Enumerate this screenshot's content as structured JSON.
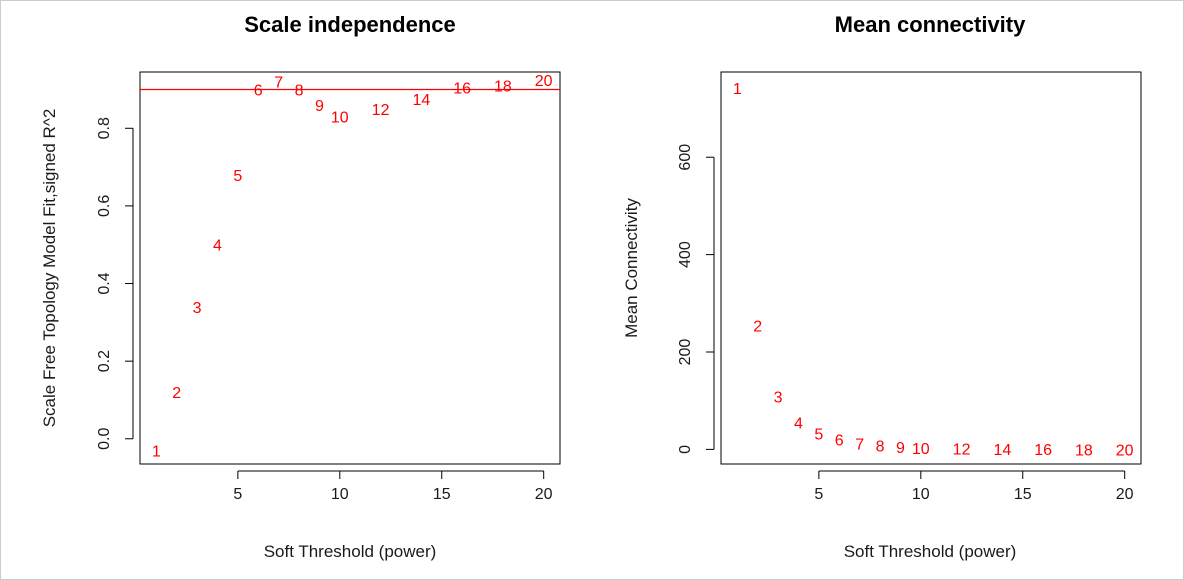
{
  "colors": {
    "marker": "#ff0000",
    "reference_line": "#ff0000",
    "axis": "#000000",
    "border": "#cccccc"
  },
  "chart_data": [
    {
      "type": "scatter",
      "marker": "text-label",
      "title": "Scale independence",
      "xlabel": "Soft Threshold (power)",
      "ylabel": "Scale Free Topology Model Fit,signed R^2",
      "xlim": [
        0.2,
        20.8
      ],
      "ylim": [
        -0.065,
        0.945
      ],
      "xticks": [
        5,
        10,
        15,
        20
      ],
      "yticks": [
        0.0,
        0.2,
        0.4,
        0.6,
        0.8
      ],
      "ytick_labels": [
        "0.0",
        "0.2",
        "0.4",
        "0.6",
        "0.8"
      ],
      "hline": 0.9,
      "grid": false,
      "points": [
        {
          "x": 1,
          "y": -0.03,
          "label": "1"
        },
        {
          "x": 2,
          "y": 0.12,
          "label": "2"
        },
        {
          "x": 3,
          "y": 0.34,
          "label": "3"
        },
        {
          "x": 4,
          "y": 0.5,
          "label": "4"
        },
        {
          "x": 5,
          "y": 0.68,
          "label": "5"
        },
        {
          "x": 6,
          "y": 0.9,
          "label": "6"
        },
        {
          "x": 7,
          "y": 0.92,
          "label": "7"
        },
        {
          "x": 8,
          "y": 0.9,
          "label": "8"
        },
        {
          "x": 9,
          "y": 0.86,
          "label": "9"
        },
        {
          "x": 10,
          "y": 0.83,
          "label": "10"
        },
        {
          "x": 12,
          "y": 0.85,
          "label": "12"
        },
        {
          "x": 14,
          "y": 0.875,
          "label": "14"
        },
        {
          "x": 16,
          "y": 0.905,
          "label": "16"
        },
        {
          "x": 18,
          "y": 0.91,
          "label": "18"
        },
        {
          "x": 20,
          "y": 0.925,
          "label": "20"
        }
      ]
    },
    {
      "type": "scatter",
      "marker": "text-label",
      "title": "Mean connectivity",
      "xlabel": "Soft Threshold (power)",
      "ylabel": "Mean Connectivity",
      "xlim": [
        0.2,
        20.8
      ],
      "ylim": [
        -30,
        775
      ],
      "xticks": [
        5,
        10,
        15,
        20
      ],
      "yticks": [
        0,
        200,
        400,
        600
      ],
      "ytick_labels": [
        "0",
        "200",
        "400",
        "600"
      ],
      "grid": false,
      "points": [
        {
          "x": 1,
          "y": 742,
          "label": "1"
        },
        {
          "x": 2,
          "y": 254,
          "label": "2"
        },
        {
          "x": 3,
          "y": 109,
          "label": "3"
        },
        {
          "x": 4,
          "y": 55,
          "label": "4"
        },
        {
          "x": 5,
          "y": 33,
          "label": "5"
        },
        {
          "x": 6,
          "y": 20,
          "label": "6"
        },
        {
          "x": 7,
          "y": 12,
          "label": "7"
        },
        {
          "x": 8,
          "y": 8,
          "label": "8"
        },
        {
          "x": 9,
          "y": 5,
          "label": "9"
        },
        {
          "x": 10,
          "y": 3,
          "label": "10"
        },
        {
          "x": 12,
          "y": 1.5,
          "label": "12"
        },
        {
          "x": 14,
          "y": 0.7,
          "label": "14"
        },
        {
          "x": 16,
          "y": 0.4,
          "label": "16"
        },
        {
          "x": 18,
          "y": 0.2,
          "label": "18"
        },
        {
          "x": 20,
          "y": 0.1,
          "label": "20"
        }
      ]
    }
  ]
}
